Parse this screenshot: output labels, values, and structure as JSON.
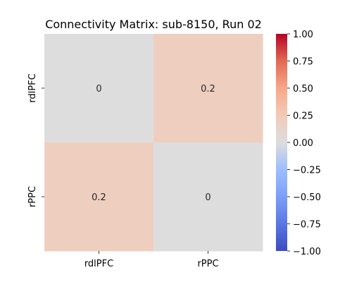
{
  "chart_data": {
    "type": "heatmap",
    "title": "Connectivity Matrix: sub-8150, Run 02",
    "xlabel": "",
    "ylabel": "",
    "x_categories": [
      "rdlPFC",
      "rPPC"
    ],
    "y_categories": [
      "rdlPFC",
      "rPPC"
    ],
    "values": [
      [
        0,
        0.2
      ],
      [
        0.2,
        0
      ]
    ],
    "cell_labels": [
      [
        "0",
        "0.2"
      ],
      [
        "0.2",
        "0"
      ]
    ],
    "colorbar": {
      "colormap": "coolwarm",
      "vmin": -1.0,
      "vmax": 1.0,
      "ticks": [
        1.0,
        0.75,
        0.5,
        0.25,
        0.0,
        -0.25,
        -0.5,
        -0.75,
        -1.0
      ],
      "tick_labels": [
        "1.00",
        "0.75",
        "0.50",
        "0.25",
        "0.00",
        "−0.25",
        "−0.50",
        "−0.75",
        "−1.00"
      ]
    },
    "grid": false
  }
}
